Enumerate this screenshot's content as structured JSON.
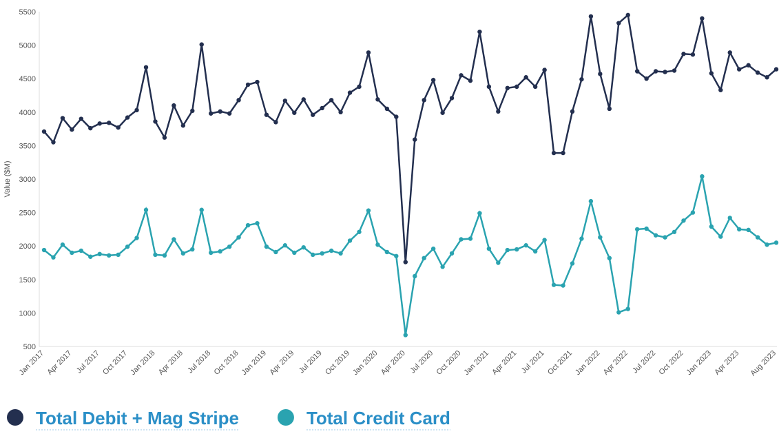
{
  "chart_data": {
    "type": "line",
    "ylabel": "Value ($M)",
    "categories": [
      "Jan 2017",
      null,
      null,
      "Apr 2017",
      null,
      null,
      "Jul 2017",
      null,
      null,
      "Oct 2017",
      null,
      null,
      "Jan 2018",
      null,
      null,
      "Apr 2018",
      null,
      null,
      "Jul 2018",
      null,
      null,
      "Oct 2018",
      null,
      null,
      "Jan 2019",
      null,
      null,
      "Apr 2019",
      null,
      null,
      "Jul 2019",
      null,
      null,
      "Oct 2019",
      null,
      null,
      "Jan 2020",
      null,
      null,
      "Apr 2020",
      null,
      null,
      "Jul 2020",
      null,
      null,
      "Oct 2020",
      null,
      null,
      "Jan 2021",
      null,
      null,
      "Apr 2021",
      null,
      null,
      "Jul 2021",
      null,
      null,
      "Oct 2021",
      null,
      null,
      "Jan 2022",
      null,
      null,
      "Apr 2022",
      null,
      null,
      "Jul 2022",
      null,
      null,
      "Oct 2022",
      null,
      null,
      "Jan 2023",
      null,
      null,
      "Apr 2023",
      null,
      null,
      null,
      "Aug 2023"
    ],
    "series": [
      {
        "name": "Total Debit + Mag Stripe",
        "color": "#232f4f",
        "values": [
          3710,
          3550,
          3910,
          3740,
          3900,
          3760,
          3830,
          3840,
          3770,
          3920,
          4030,
          4670,
          3860,
          3620,
          4100,
          3800,
          4020,
          5010,
          3980,
          4010,
          3980,
          4180,
          4410,
          4450,
          3960,
          3850,
          4170,
          3990,
          4190,
          3960,
          4060,
          4180,
          4000,
          4290,
          4380,
          4890,
          4190,
          4050,
          3930,
          1760,
          3590,
          4180,
          4480,
          3990,
          4210,
          4550,
          4470,
          5200,
          4380,
          4010,
          4360,
          4380,
          4520,
          4380,
          4630,
          3390,
          3390,
          4010,
          4490,
          5430,
          4570,
          4050,
          5330,
          5450,
          4610,
          4500,
          4610,
          4600,
          4620,
          4870,
          4860,
          5400,
          4580,
          4330,
          4890,
          4640,
          4700,
          4590,
          4520,
          4640
        ]
      },
      {
        "name": "Total Credit Card",
        "color": "#2aa3b0",
        "values": [
          1940,
          1830,
          2020,
          1900,
          1930,
          1840,
          1880,
          1860,
          1870,
          1990,
          2120,
          2540,
          1870,
          1860,
          2100,
          1890,
          1950,
          2540,
          1900,
          1920,
          1990,
          2130,
          2310,
          2340,
          1990,
          1910,
          2010,
          1900,
          1980,
          1870,
          1890,
          1930,
          1890,
          2080,
          2210,
          2530,
          2020,
          1910,
          1850,
          670,
          1550,
          1820,
          1960,
          1690,
          1890,
          2100,
          2110,
          2490,
          1960,
          1750,
          1940,
          1950,
          2010,
          1920,
          2090,
          1420,
          1410,
          1740,
          2110,
          2670,
          2130,
          1820,
          1010,
          1060,
          2250,
          2260,
          2160,
          2130,
          2210,
          2380,
          2500,
          3040,
          2290,
          2140,
          2420,
          2250,
          2240,
          2130,
          2020,
          2050
        ]
      }
    ],
    "ylim": [
      500,
      5500
    ],
    "yticks": [
      500,
      1000,
      1500,
      2000,
      2500,
      3000,
      3500,
      4000,
      4500,
      5000,
      5500
    ],
    "grid": false
  }
}
